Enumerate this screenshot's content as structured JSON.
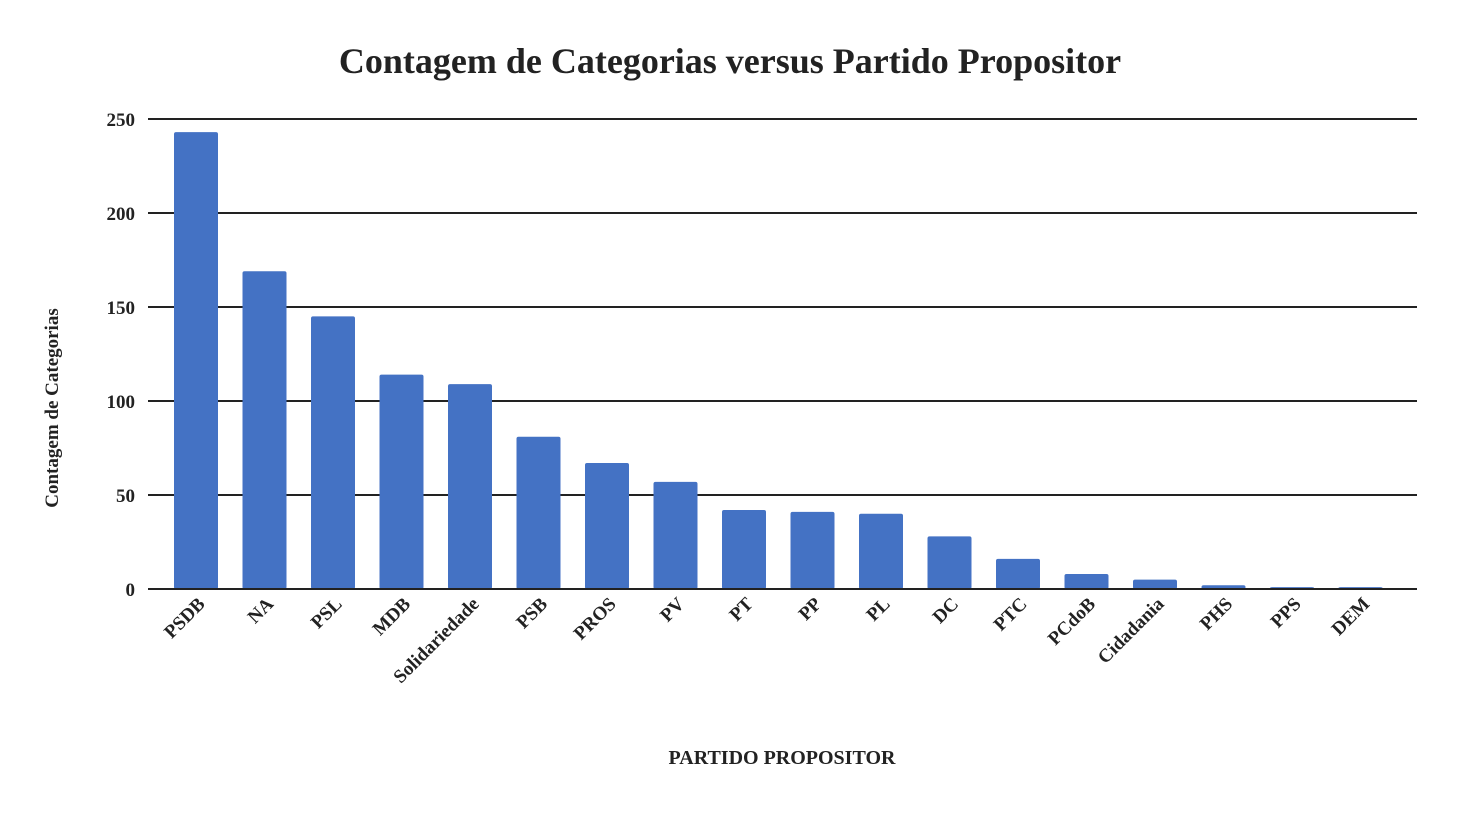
{
  "chart_data": {
    "type": "bar",
    "title": "Contagem de Categorias versus Partido Propositor",
    "xlabel": "PARTIDO PROPOSITOR",
    "ylabel": "Contagem de Categorias",
    "categories": [
      "PSDB",
      "NA",
      "PSL",
      "MDB",
      "Solidariedade",
      "PSB",
      "PROS",
      "PV",
      "PT",
      "PP",
      "PL",
      "DC",
      "PTC",
      "PCdoB",
      "Cidadania",
      "PHS",
      "PPS",
      "DEM"
    ],
    "values": [
      243,
      169,
      145,
      114,
      109,
      81,
      67,
      57,
      42,
      41,
      40,
      28,
      16,
      8,
      5,
      2,
      1,
      1
    ],
    "ylim": [
      0,
      250
    ],
    "yticks": [
      0,
      50,
      100,
      150,
      200,
      250
    ],
    "grid": true,
    "legend": "none",
    "bar_color": "#4472c4"
  }
}
